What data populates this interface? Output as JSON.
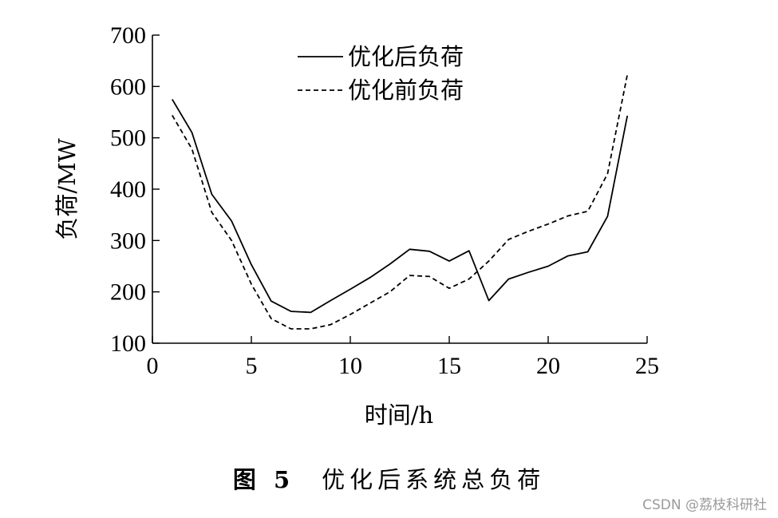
{
  "chart_data": {
    "type": "line",
    "xlabel": "时间/h",
    "ylabel": "负荷/MW",
    "xlim": [
      0,
      25
    ],
    "ylim": [
      100,
      700
    ],
    "xticks": [
      0,
      5,
      10,
      15,
      20,
      25
    ],
    "yticks": [
      100,
      200,
      300,
      400,
      500,
      600,
      700
    ],
    "grid": false,
    "legend_position": "top-center",
    "series": [
      {
        "name": "优化后负荷",
        "style": "solid",
        "x": [
          1,
          2,
          3,
          4,
          5,
          6,
          7,
          8,
          9,
          10,
          11,
          12,
          13,
          14,
          15,
          16,
          17,
          18,
          19,
          20,
          21,
          22,
          23,
          24
        ],
        "y": [
          575,
          510,
          390,
          338,
          253,
          182,
          162,
          160,
          183,
          205,
          228,
          254,
          283,
          279,
          260,
          280,
          183,
          225,
          238,
          250,
          270,
          278,
          347,
          543
        ]
      },
      {
        "name": "优化前负荷",
        "style": "dashed",
        "x": [
          1,
          2,
          3,
          4,
          5,
          6,
          7,
          8,
          9,
          10,
          11,
          12,
          13,
          14,
          15,
          16,
          17,
          18,
          19,
          20,
          21,
          22,
          23,
          24
        ],
        "y": [
          544,
          478,
          355,
          300,
          215,
          148,
          128,
          128,
          136,
          156,
          178,
          200,
          232,
          230,
          207,
          225,
          260,
          302,
          318,
          332,
          348,
          357,
          430,
          623
        ]
      }
    ]
  },
  "caption": {
    "figure_number": "图 5",
    "title": "优化后系统总负荷"
  },
  "watermark": "CSDN @荔枝科研社"
}
